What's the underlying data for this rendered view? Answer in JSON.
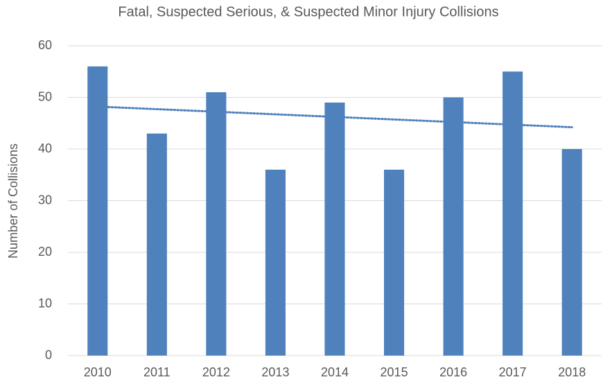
{
  "chart_data": {
    "type": "bar",
    "title": "Fatal, Suspected Serious, & Suspected Minor Injury Collisions",
    "y_label": "Number of Collisions",
    "categories": [
      "2010",
      "2011",
      "2012",
      "2013",
      "2014",
      "2015",
      "2016",
      "2017",
      "2018"
    ],
    "values": [
      56,
      43,
      51,
      36,
      49,
      36,
      50,
      55,
      40
    ],
    "color": "#4f81bd",
    "ylim": [
      0,
      60
    ],
    "yticks": [
      0,
      10,
      20,
      30,
      40,
      50,
      60
    ],
    "grid": true,
    "trendline": true
  }
}
